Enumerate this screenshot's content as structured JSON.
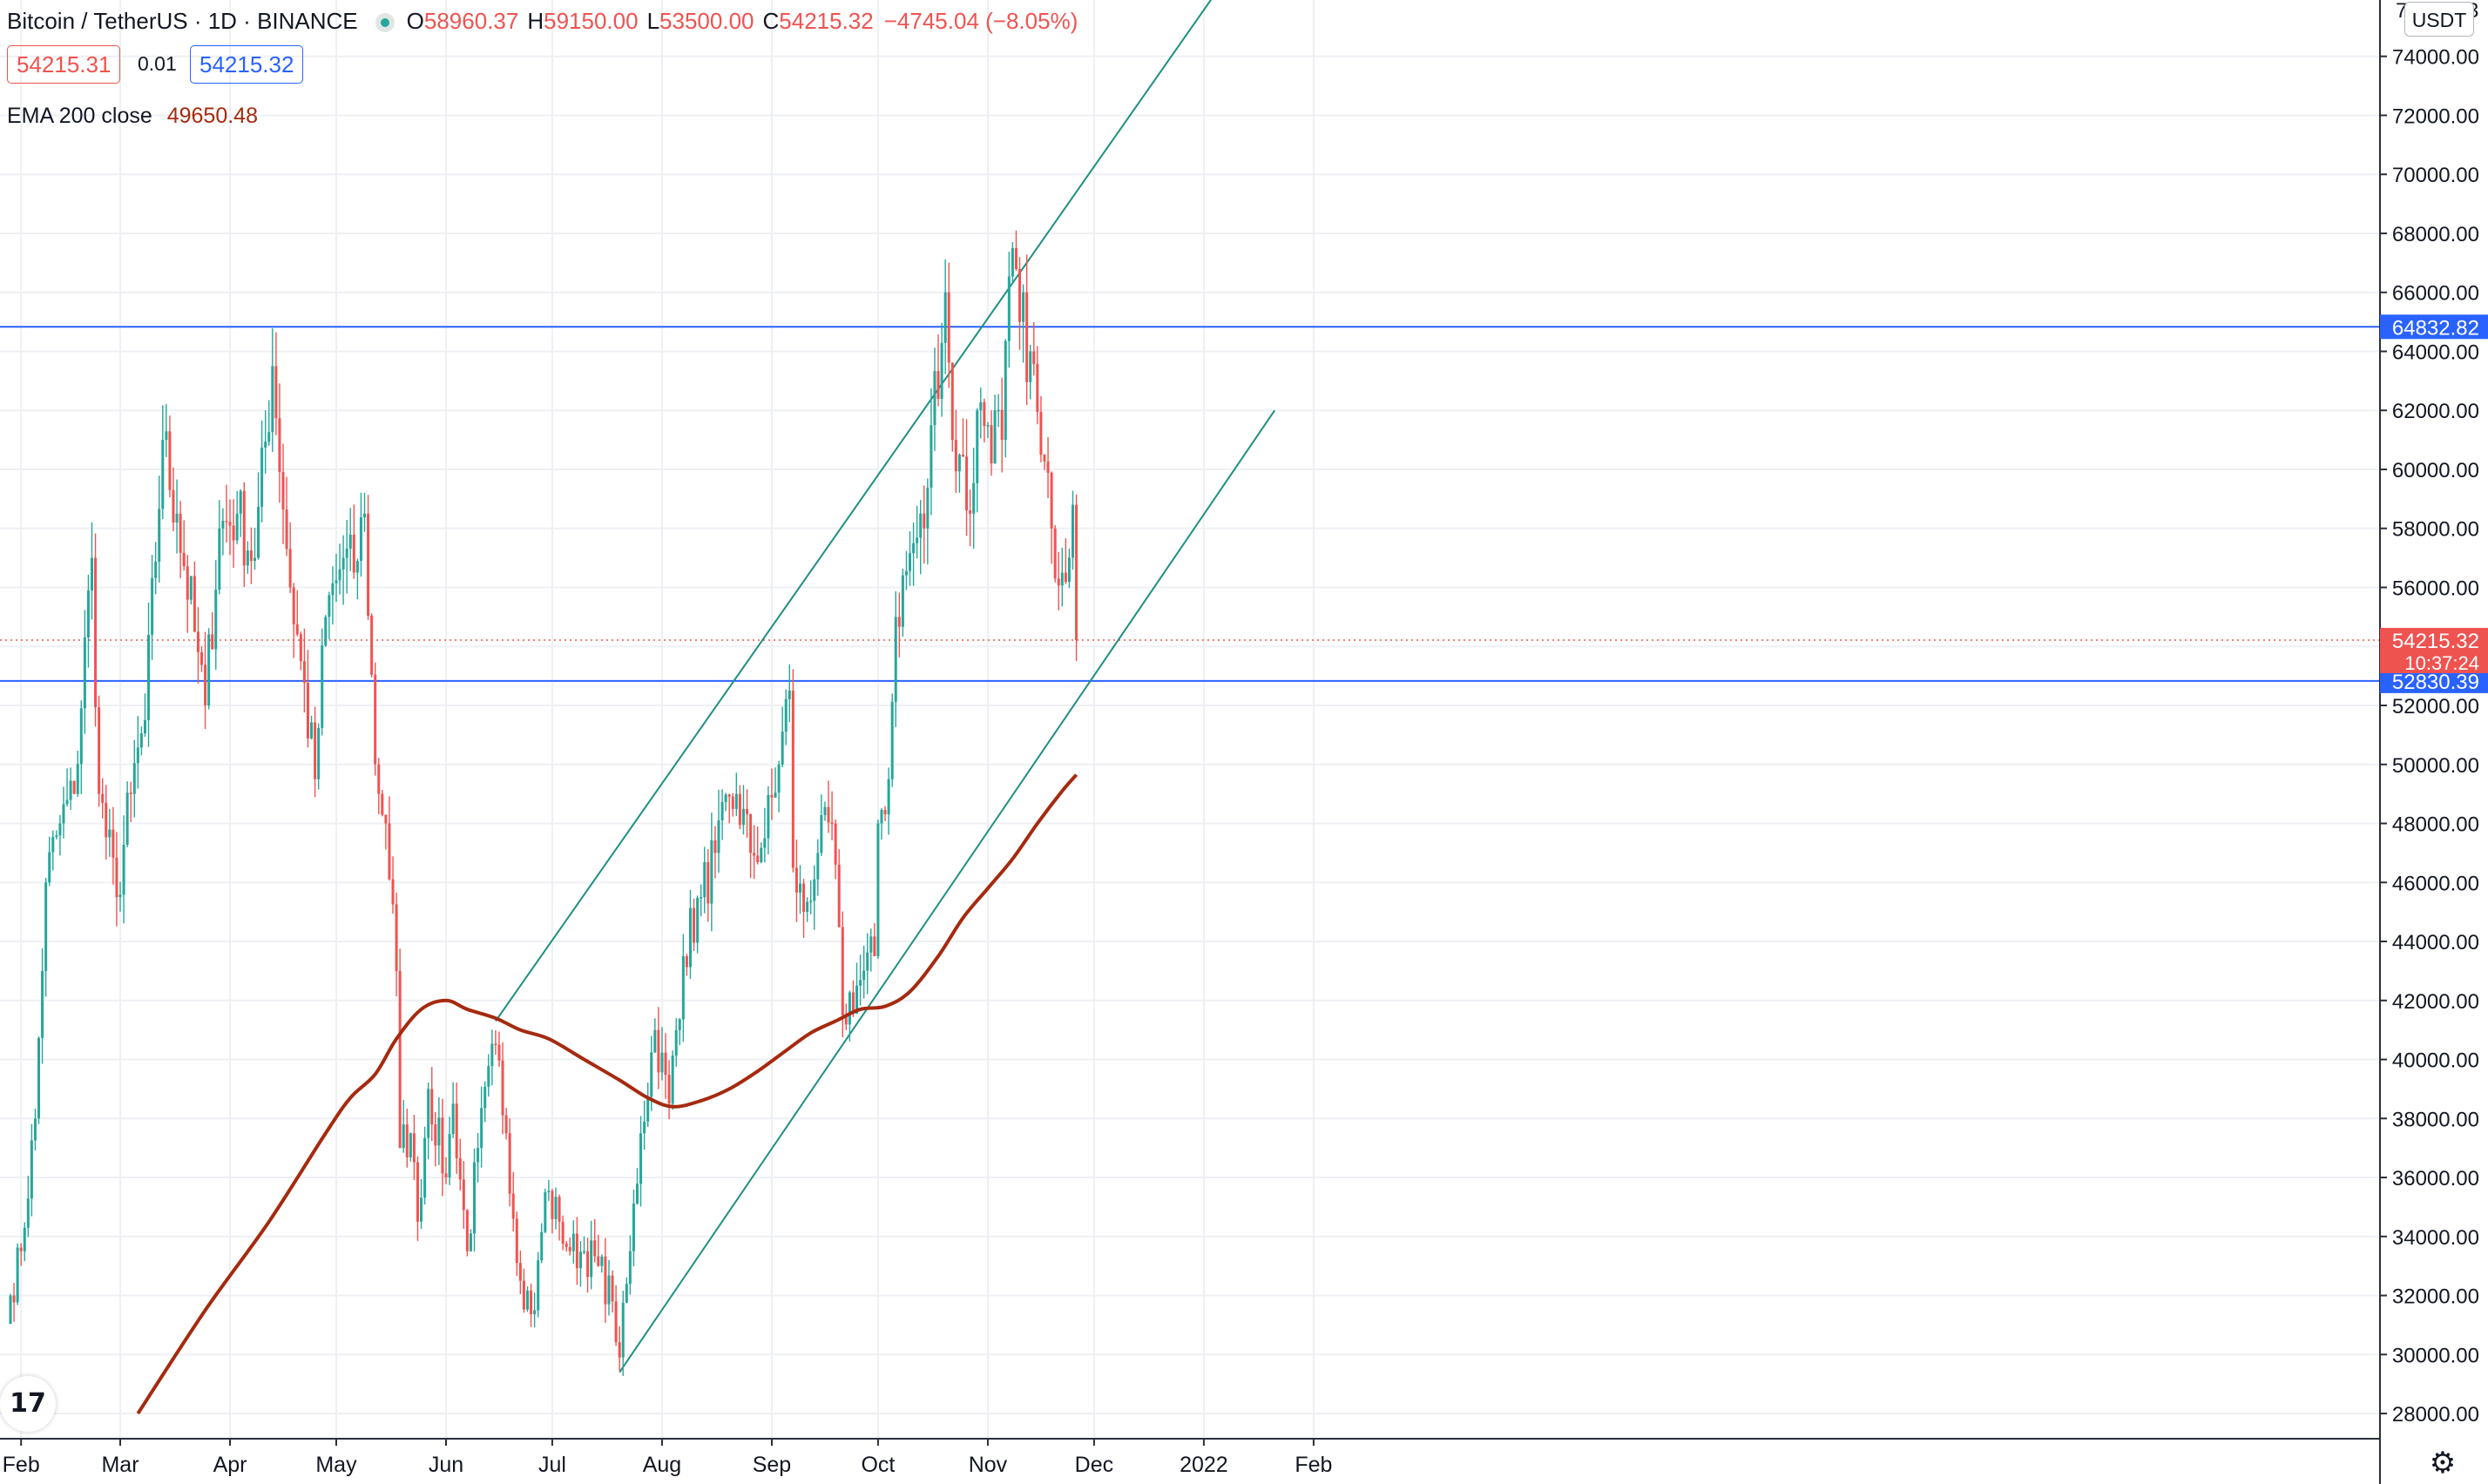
{
  "legend": {
    "symbol": "Bitcoin / TetherUS · 1D · BINANCE",
    "o_key": "O",
    "o_val": "58960.37",
    "h_key": "H",
    "h_val": "59150.00",
    "l_key": "L",
    "l_val": "53500.00",
    "c_key": "C",
    "c_val": "54215.32",
    "change": "−4745.04 (−8.05%)",
    "bid": "54215.31",
    "spread": "0.01",
    "ask": "54215.32",
    "ema_label": "EMA 200 close",
    "ema_value": "49650.48"
  },
  "currency_label": "USDT",
  "colors": {
    "up": "#26a69a",
    "down": "#ef5350",
    "ema": "#a52a0f",
    "trendline": "#1f8f80",
    "hline": "#2962ff",
    "grid": "#eef0f3",
    "text": "#131722"
  },
  "chart_data": {
    "type": "candlestick",
    "symbol": "BTCUSDT",
    "timeframe": "1D",
    "x_start": "2021-01-29",
    "y_range": [
      27500,
      76500
    ],
    "y_ticks": [
      28000,
      30000,
      32000,
      34000,
      36000,
      38000,
      40000,
      42000,
      44000,
      46000,
      48000,
      50000,
      52000,
      54000,
      56000,
      58000,
      60000,
      62000,
      64000,
      66000,
      68000,
      70000,
      72000,
      74000
    ],
    "y_tick_labels": [
      "28000.00",
      "30000.00",
      "32000.00",
      "34000.00",
      "36000.00",
      "38000.00",
      "40000.00",
      "42000.00",
      "44000.00",
      "46000.00",
      "48000.00",
      "50000.00",
      "52000.00",
      "54000.00",
      "56000.00",
      "58000.00",
      "60000.00",
      "62000.00",
      "64000.00",
      "66000.00",
      "68000.00",
      "70000.00",
      "72000.00",
      "74000.00"
    ],
    "x_ticks": [
      {
        "label": "Feb",
        "date": "2021-02-01"
      },
      {
        "label": "Mar",
        "date": "2021-03-01"
      },
      {
        "label": "Apr",
        "date": "2021-04-01"
      },
      {
        "label": "May",
        "date": "2021-05-01"
      },
      {
        "label": "Jun",
        "date": "2021-06-01"
      },
      {
        "label": "Jul",
        "date": "2021-07-01"
      },
      {
        "label": "Aug",
        "date": "2021-08-01"
      },
      {
        "label": "Sep",
        "date": "2021-09-01"
      },
      {
        "label": "Oct",
        "date": "2021-10-01"
      },
      {
        "label": "Nov",
        "date": "2021-11-01"
      },
      {
        "label": "Dec",
        "date": "2021-12-01"
      },
      {
        "label": "2022",
        "date": "2022-01-01"
      },
      {
        "label": "Feb",
        "date": "2022-02-01"
      }
    ],
    "close_anchors": [
      [
        "2021-01-29",
        32000
      ],
      [
        "2021-02-01",
        33500
      ],
      [
        "2021-02-05",
        38000
      ],
      [
        "2021-02-08",
        46000
      ],
      [
        "2021-02-12",
        48000
      ],
      [
        "2021-02-16",
        49000
      ],
      [
        "2021-02-21",
        57000
      ],
      [
        "2021-02-23",
        49000
      ],
      [
        "2021-02-28",
        45500
      ],
      [
        "2021-03-04",
        49000
      ],
      [
        "2021-03-08",
        51500
      ],
      [
        "2021-03-13",
        61000
      ],
      [
        "2021-03-17",
        58500
      ],
      [
        "2021-03-22",
        54500
      ],
      [
        "2021-03-25",
        52000
      ],
      [
        "2021-03-29",
        58000
      ],
      [
        "2021-04-03",
        58500
      ],
      [
        "2021-04-08",
        57000
      ],
      [
        "2021-04-13",
        63500
      ],
      [
        "2021-04-18",
        56000
      ],
      [
        "2021-04-21",
        53500
      ],
      [
        "2021-04-25",
        49500
      ],
      [
        "2021-04-28",
        55000
      ],
      [
        "2021-05-03",
        57000
      ],
      [
        "2021-05-06",
        56500
      ],
      [
        "2021-05-09",
        58500
      ],
      [
        "2021-05-12",
        50000
      ],
      [
        "2021-05-15",
        48000
      ],
      [
        "2021-05-18",
        43000
      ],
      [
        "2021-05-19",
        37000
      ],
      [
        "2021-05-22",
        37500
      ],
      [
        "2021-05-24",
        34500
      ],
      [
        "2021-05-27",
        39000
      ],
      [
        "2021-06-01",
        36000
      ],
      [
        "2021-06-03",
        38500
      ],
      [
        "2021-06-07",
        33500
      ],
      [
        "2021-06-10",
        37000
      ],
      [
        "2021-06-15",
        40500
      ],
      [
        "2021-06-18",
        37500
      ],
      [
        "2021-06-22",
        32500
      ],
      [
        "2021-06-26",
        31500
      ],
      [
        "2021-06-29",
        35500
      ],
      [
        "2021-07-03",
        34500
      ],
      [
        "2021-07-06",
        33500
      ],
      [
        "2021-07-10",
        33500
      ],
      [
        "2021-07-14",
        33000
      ],
      [
        "2021-07-18",
        31800
      ],
      [
        "2021-07-20",
        29900
      ],
      [
        "2021-07-23",
        33500
      ],
      [
        "2021-07-26",
        37500
      ],
      [
        "2021-07-30",
        41000
      ],
      [
        "2021-08-03",
        38500
      ],
      [
        "2021-08-07",
        43500
      ],
      [
        "2021-08-12",
        45500
      ],
      [
        "2021-08-16",
        47000
      ],
      [
        "2021-08-22",
        49000
      ],
      [
        "2021-08-26",
        47000
      ],
      [
        "2021-08-30",
        47500
      ],
      [
        "2021-09-03",
        50000
      ],
      [
        "2021-09-06",
        52500
      ],
      [
        "2021-09-07",
        46500
      ],
      [
        "2021-09-10",
        45000
      ],
      [
        "2021-09-14",
        47000
      ],
      [
        "2021-09-18",
        48000
      ],
      [
        "2021-09-21",
        41500
      ],
      [
        "2021-09-25",
        42500
      ],
      [
        "2021-09-30",
        43500
      ],
      [
        "2021-10-01",
        48000
      ],
      [
        "2021-10-04",
        49500
      ],
      [
        "2021-10-06",
        55000
      ],
      [
        "2021-10-11",
        57500
      ],
      [
        "2021-10-14",
        58000
      ],
      [
        "2021-10-16",
        61500
      ],
      [
        "2021-10-20",
        66000
      ],
      [
        "2021-10-22",
        61000
      ],
      [
        "2021-10-24",
        60500
      ],
      [
        "2021-10-27",
        58500
      ],
      [
        "2021-10-29",
        62000
      ],
      [
        "2021-11-01",
        61500
      ],
      [
        "2021-11-05",
        61000
      ],
      [
        "2021-11-08",
        67500
      ],
      [
        "2021-11-10",
        65000
      ],
      [
        "2021-11-13",
        64000
      ],
      [
        "2021-11-16",
        60500
      ],
      [
        "2021-11-19",
        58000
      ],
      [
        "2021-11-22",
        56500
      ],
      [
        "2021-11-25",
        58800
      ],
      [
        "2021-11-26",
        54215
      ]
    ],
    "ema_anchors": [
      [
        "2021-03-06",
        28000
      ],
      [
        "2021-03-25",
        31500
      ],
      [
        "2021-04-12",
        34500
      ],
      [
        "2021-04-28",
        37500
      ],
      [
        "2021-05-05",
        38700
      ],
      [
        "2021-05-12",
        39500
      ],
      [
        "2021-05-18",
        40700
      ],
      [
        "2021-05-25",
        41700
      ],
      [
        "2021-06-01",
        42000
      ],
      [
        "2021-06-07",
        41700
      ],
      [
        "2021-06-15",
        41400
      ],
      [
        "2021-06-22",
        41000
      ],
      [
        "2021-06-30",
        40700
      ],
      [
        "2021-07-10",
        40000
      ],
      [
        "2021-07-20",
        39300
      ],
      [
        "2021-07-28",
        38700
      ],
      [
        "2021-08-04",
        38400
      ],
      [
        "2021-08-12",
        38600
      ],
      [
        "2021-08-20",
        39000
      ],
      [
        "2021-08-28",
        39600
      ],
      [
        "2021-09-05",
        40300
      ],
      [
        "2021-09-12",
        40900
      ],
      [
        "2021-09-19",
        41300
      ],
      [
        "2021-09-26",
        41700
      ],
      [
        "2021-10-03",
        41800
      ],
      [
        "2021-10-10",
        42300
      ],
      [
        "2021-10-18",
        43500
      ],
      [
        "2021-10-25",
        44800
      ],
      [
        "2021-11-01",
        45800
      ],
      [
        "2021-11-08",
        46800
      ],
      [
        "2021-11-15",
        48000
      ],
      [
        "2021-11-22",
        49100
      ],
      [
        "2021-11-26",
        49650
      ]
    ],
    "horizontal_levels": [
      {
        "price": 64832.82,
        "label": "64832.82"
      },
      {
        "price": 52830.39,
        "label": "52830.39"
      }
    ],
    "last_price": {
      "price": 54215.32,
      "label": "54215.32",
      "countdown": "10:37:24"
    },
    "trendlines": [
      {
        "from": [
          "2021-06-15",
          41300
        ],
        "to": [
          "2022-01-21",
          79000
        ]
      },
      {
        "from": [
          "2021-07-20",
          29400
        ],
        "to": [
          "2022-01-21",
          62000
        ]
      }
    ],
    "annotations": [
      "7",
      "3"
    ]
  }
}
